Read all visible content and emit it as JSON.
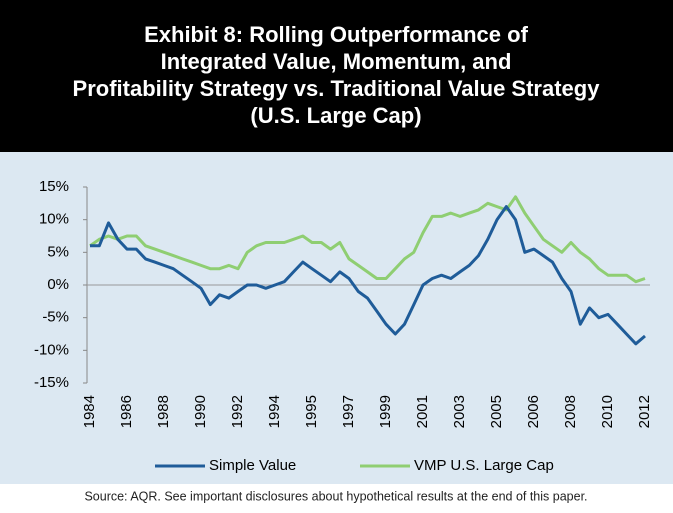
{
  "chart_data": {
    "type": "line",
    "title": [
      "Exhibit 8: Rolling Outperformance of",
      "Integrated Value, Momentum, and",
      "Profitability Strategy vs. Traditional Value Strategy",
      "(U.S. Large Cap)"
    ],
    "source": "Source: AQR. See important disclosures about hypothetical results at the end of this paper.",
    "categories": [
      "1984",
      null,
      null,
      null,
      "1986",
      null,
      null,
      null,
      "1988",
      null,
      null,
      null,
      "1990",
      null,
      null,
      null,
      "1992",
      null,
      null,
      null,
      "1994",
      null,
      null,
      null,
      "1995",
      null,
      null,
      null,
      "1997",
      null,
      null,
      null,
      "1999",
      null,
      null,
      null,
      "2001",
      null,
      null,
      null,
      "2003",
      null,
      null,
      null,
      "2005",
      null,
      null,
      null,
      "2006",
      null,
      null,
      null,
      "2008",
      null,
      null,
      null,
      "2010",
      null,
      null,
      null,
      "2012"
    ],
    "series": [
      {
        "name": "Simple Value",
        "color": "#1f5c99",
        "values": [
          6,
          6,
          9.5,
          7,
          5.5,
          5.5,
          4,
          3.5,
          3,
          2.5,
          1.5,
          0.5,
          -0.5,
          -3,
          -1.5,
          -2,
          -1,
          0,
          0,
          -0.5,
          0,
          0.5,
          2,
          3.5,
          2.5,
          1.5,
          0.5,
          2,
          1,
          -1,
          -2,
          -4,
          -6,
          -7.5,
          -6,
          -3,
          0,
          1,
          1.5,
          1,
          2,
          3,
          4.5,
          7,
          10,
          12,
          10,
          5,
          5.5,
          4.5,
          3.5,
          1,
          -1,
          -6,
          -3.5,
          -5,
          -4.5,
          -6,
          -7.5,
          -9,
          -7.8
        ]
      },
      {
        "name": "VMP U.S. Large Cap",
        "color": "#8fce72",
        "values": [
          6,
          7,
          7.5,
          7,
          7.5,
          7.5,
          6,
          5.5,
          5,
          4.5,
          4,
          3.5,
          3,
          2.5,
          2.5,
          3,
          2.5,
          5,
          6,
          6.5,
          6.5,
          6.5,
          7,
          7.5,
          6.5,
          6.5,
          5.5,
          6.5,
          4,
          3,
          2,
          1,
          1,
          2.5,
          4,
          5,
          8,
          10.5,
          10.5,
          11,
          10.5,
          11,
          11.5,
          12.5,
          12,
          11.5,
          13.5,
          11,
          9,
          7,
          6,
          5,
          6.5,
          5,
          4,
          2.5,
          1.5,
          1.5,
          1.5,
          0.5,
          1
        ]
      }
    ],
    "ylim": [
      -15,
      15
    ],
    "yticks": [
      {
        "value": -15,
        "label": "-15%"
      },
      {
        "value": -10,
        "label": "-10%"
      },
      {
        "value": -5,
        "label": "-5%"
      },
      {
        "value": 0,
        "label": "0%"
      },
      {
        "value": 5,
        "label": "5%"
      },
      {
        "value": 10,
        "label": "10%"
      },
      {
        "value": 15,
        "label": "15%"
      }
    ]
  }
}
